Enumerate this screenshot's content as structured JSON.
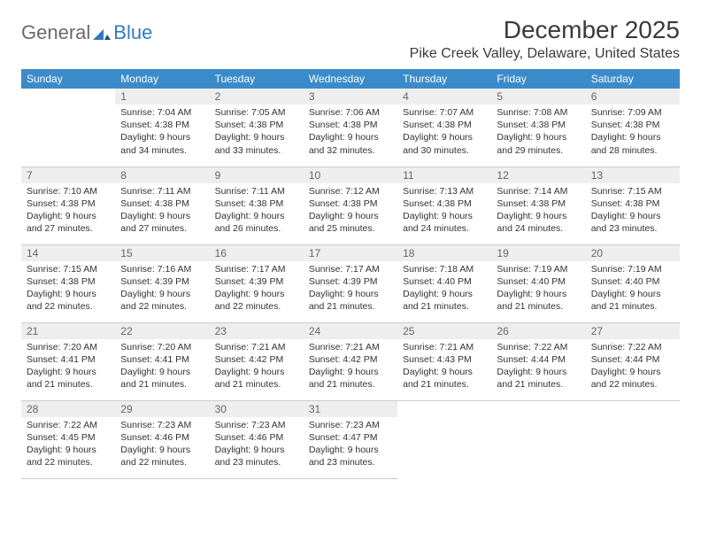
{
  "brand": {
    "part1": "General",
    "part2": "Blue"
  },
  "title": "December 2025",
  "location": "Pike Creek Valley, Delaware, United States",
  "colors": {
    "header_bg": "#3b8bca",
    "header_text": "#ffffff",
    "row_top_border": "#3b6fa0",
    "daynum_bg": "#eeeeee",
    "daynum_text": "#666666",
    "body_text": "#333333",
    "page_bg": "#ffffff",
    "logo_gray": "#6a6a6a",
    "logo_blue": "#2f7bbf"
  },
  "weekdays": [
    "Sunday",
    "Monday",
    "Tuesday",
    "Wednesday",
    "Thursday",
    "Friday",
    "Saturday"
  ],
  "weeks": [
    [
      {
        "day": "",
        "sunrise": "",
        "sunset": "",
        "daylight1": "",
        "daylight2": ""
      },
      {
        "day": "1",
        "sunrise": "Sunrise: 7:04 AM",
        "sunset": "Sunset: 4:38 PM",
        "daylight1": "Daylight: 9 hours",
        "daylight2": "and 34 minutes."
      },
      {
        "day": "2",
        "sunrise": "Sunrise: 7:05 AM",
        "sunset": "Sunset: 4:38 PM",
        "daylight1": "Daylight: 9 hours",
        "daylight2": "and 33 minutes."
      },
      {
        "day": "3",
        "sunrise": "Sunrise: 7:06 AM",
        "sunset": "Sunset: 4:38 PM",
        "daylight1": "Daylight: 9 hours",
        "daylight2": "and 32 minutes."
      },
      {
        "day": "4",
        "sunrise": "Sunrise: 7:07 AM",
        "sunset": "Sunset: 4:38 PM",
        "daylight1": "Daylight: 9 hours",
        "daylight2": "and 30 minutes."
      },
      {
        "day": "5",
        "sunrise": "Sunrise: 7:08 AM",
        "sunset": "Sunset: 4:38 PM",
        "daylight1": "Daylight: 9 hours",
        "daylight2": "and 29 minutes."
      },
      {
        "day": "6",
        "sunrise": "Sunrise: 7:09 AM",
        "sunset": "Sunset: 4:38 PM",
        "daylight1": "Daylight: 9 hours",
        "daylight2": "and 28 minutes."
      }
    ],
    [
      {
        "day": "7",
        "sunrise": "Sunrise: 7:10 AM",
        "sunset": "Sunset: 4:38 PM",
        "daylight1": "Daylight: 9 hours",
        "daylight2": "and 27 minutes."
      },
      {
        "day": "8",
        "sunrise": "Sunrise: 7:11 AM",
        "sunset": "Sunset: 4:38 PM",
        "daylight1": "Daylight: 9 hours",
        "daylight2": "and 27 minutes."
      },
      {
        "day": "9",
        "sunrise": "Sunrise: 7:11 AM",
        "sunset": "Sunset: 4:38 PM",
        "daylight1": "Daylight: 9 hours",
        "daylight2": "and 26 minutes."
      },
      {
        "day": "10",
        "sunrise": "Sunrise: 7:12 AM",
        "sunset": "Sunset: 4:38 PM",
        "daylight1": "Daylight: 9 hours",
        "daylight2": "and 25 minutes."
      },
      {
        "day": "11",
        "sunrise": "Sunrise: 7:13 AM",
        "sunset": "Sunset: 4:38 PM",
        "daylight1": "Daylight: 9 hours",
        "daylight2": "and 24 minutes."
      },
      {
        "day": "12",
        "sunrise": "Sunrise: 7:14 AM",
        "sunset": "Sunset: 4:38 PM",
        "daylight1": "Daylight: 9 hours",
        "daylight2": "and 24 minutes."
      },
      {
        "day": "13",
        "sunrise": "Sunrise: 7:15 AM",
        "sunset": "Sunset: 4:38 PM",
        "daylight1": "Daylight: 9 hours",
        "daylight2": "and 23 minutes."
      }
    ],
    [
      {
        "day": "14",
        "sunrise": "Sunrise: 7:15 AM",
        "sunset": "Sunset: 4:38 PM",
        "daylight1": "Daylight: 9 hours",
        "daylight2": "and 22 minutes."
      },
      {
        "day": "15",
        "sunrise": "Sunrise: 7:16 AM",
        "sunset": "Sunset: 4:39 PM",
        "daylight1": "Daylight: 9 hours",
        "daylight2": "and 22 minutes."
      },
      {
        "day": "16",
        "sunrise": "Sunrise: 7:17 AM",
        "sunset": "Sunset: 4:39 PM",
        "daylight1": "Daylight: 9 hours",
        "daylight2": "and 22 minutes."
      },
      {
        "day": "17",
        "sunrise": "Sunrise: 7:17 AM",
        "sunset": "Sunset: 4:39 PM",
        "daylight1": "Daylight: 9 hours",
        "daylight2": "and 21 minutes."
      },
      {
        "day": "18",
        "sunrise": "Sunrise: 7:18 AM",
        "sunset": "Sunset: 4:40 PM",
        "daylight1": "Daylight: 9 hours",
        "daylight2": "and 21 minutes."
      },
      {
        "day": "19",
        "sunrise": "Sunrise: 7:19 AM",
        "sunset": "Sunset: 4:40 PM",
        "daylight1": "Daylight: 9 hours",
        "daylight2": "and 21 minutes."
      },
      {
        "day": "20",
        "sunrise": "Sunrise: 7:19 AM",
        "sunset": "Sunset: 4:40 PM",
        "daylight1": "Daylight: 9 hours",
        "daylight2": "and 21 minutes."
      }
    ],
    [
      {
        "day": "21",
        "sunrise": "Sunrise: 7:20 AM",
        "sunset": "Sunset: 4:41 PM",
        "daylight1": "Daylight: 9 hours",
        "daylight2": "and 21 minutes."
      },
      {
        "day": "22",
        "sunrise": "Sunrise: 7:20 AM",
        "sunset": "Sunset: 4:41 PM",
        "daylight1": "Daylight: 9 hours",
        "daylight2": "and 21 minutes."
      },
      {
        "day": "23",
        "sunrise": "Sunrise: 7:21 AM",
        "sunset": "Sunset: 4:42 PM",
        "daylight1": "Daylight: 9 hours",
        "daylight2": "and 21 minutes."
      },
      {
        "day": "24",
        "sunrise": "Sunrise: 7:21 AM",
        "sunset": "Sunset: 4:42 PM",
        "daylight1": "Daylight: 9 hours",
        "daylight2": "and 21 minutes."
      },
      {
        "day": "25",
        "sunrise": "Sunrise: 7:21 AM",
        "sunset": "Sunset: 4:43 PM",
        "daylight1": "Daylight: 9 hours",
        "daylight2": "and 21 minutes."
      },
      {
        "day": "26",
        "sunrise": "Sunrise: 7:22 AM",
        "sunset": "Sunset: 4:44 PM",
        "daylight1": "Daylight: 9 hours",
        "daylight2": "and 21 minutes."
      },
      {
        "day": "27",
        "sunrise": "Sunrise: 7:22 AM",
        "sunset": "Sunset: 4:44 PM",
        "daylight1": "Daylight: 9 hours",
        "daylight2": "and 22 minutes."
      }
    ],
    [
      {
        "day": "28",
        "sunrise": "Sunrise: 7:22 AM",
        "sunset": "Sunset: 4:45 PM",
        "daylight1": "Daylight: 9 hours",
        "daylight2": "and 22 minutes."
      },
      {
        "day": "29",
        "sunrise": "Sunrise: 7:23 AM",
        "sunset": "Sunset: 4:46 PM",
        "daylight1": "Daylight: 9 hours",
        "daylight2": "and 22 minutes."
      },
      {
        "day": "30",
        "sunrise": "Sunrise: 7:23 AM",
        "sunset": "Sunset: 4:46 PM",
        "daylight1": "Daylight: 9 hours",
        "daylight2": "and 23 minutes."
      },
      {
        "day": "31",
        "sunrise": "Sunrise: 7:23 AM",
        "sunset": "Sunset: 4:47 PM",
        "daylight1": "Daylight: 9 hours",
        "daylight2": "and 23 minutes."
      },
      {
        "day": "",
        "sunrise": "",
        "sunset": "",
        "daylight1": "",
        "daylight2": ""
      },
      {
        "day": "",
        "sunrise": "",
        "sunset": "",
        "daylight1": "",
        "daylight2": ""
      },
      {
        "day": "",
        "sunrise": "",
        "sunset": "",
        "daylight1": "",
        "daylight2": ""
      }
    ]
  ]
}
